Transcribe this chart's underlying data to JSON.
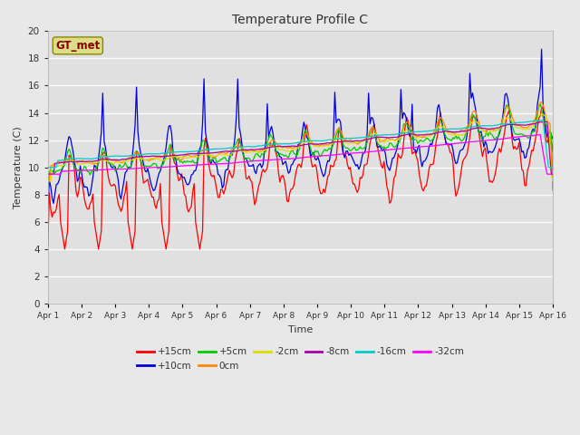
{
  "title": "Temperature Profile C",
  "xlabel": "Time",
  "ylabel": "Temperature (C)",
  "ylim": [
    0,
    20
  ],
  "bg_color": "#e8e8e8",
  "plot_bg_color": "#e0e0e0",
  "series_colors": {
    "+15cm": "#ff0000",
    "+10cm": "#0000dd",
    "+5cm": "#00cc00",
    "0cm": "#ff8800",
    "-2cm": "#dddd00",
    "-8cm": "#aa00aa",
    "-16cm": "#00cccc",
    "-32cm": "#ff00ff"
  },
  "annotation_text": "GT_met",
  "annotation_box_facecolor": "#dddd88",
  "annotation_box_edgecolor": "#888800",
  "annotation_text_color": "#880000",
  "tick_labels": [
    "Apr 1",
    "Apr 2",
    "Apr 3",
    "Apr 4",
    "Apr 5",
    "Apr 6",
    "Apr 7",
    "Apr 8",
    "Apr 9",
    "Apr 10",
    "Apr 11",
    "Apr 12",
    "Apr 13",
    "Apr 14",
    "Apr 15",
    "Apr 16"
  ],
  "legend_order": [
    "+15cm",
    "+10cm",
    "+5cm",
    "0cm",
    "-2cm",
    "-8cm",
    "-16cm",
    "-32cm"
  ]
}
